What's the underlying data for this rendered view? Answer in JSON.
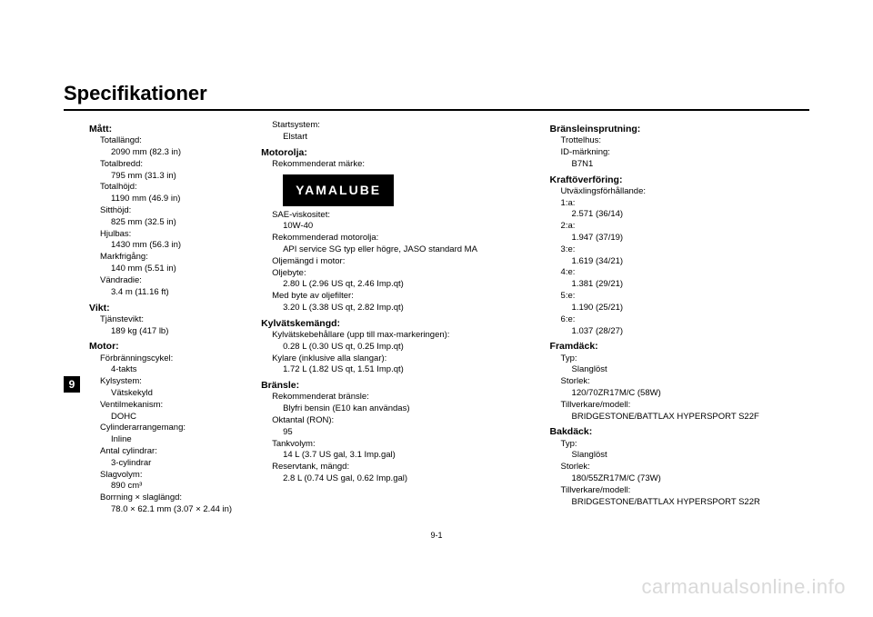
{
  "title": "Specifikationer",
  "section_num": "9",
  "page_num": "9-1",
  "watermark": "carmanualsonline.info",
  "yamalube": "YAMALUBE",
  "col1": {
    "matt": {
      "h": "Mått:",
      "items": [
        {
          "k": "Totallängd:",
          "v": "2090 mm (82.3 in)"
        },
        {
          "k": "Totalbredd:",
          "v": "795 mm (31.3 in)"
        },
        {
          "k": "Totalhöjd:",
          "v": "1190 mm (46.9 in)"
        },
        {
          "k": "Sitthöjd:",
          "v": "825 mm (32.5 in)"
        },
        {
          "k": "Hjulbas:",
          "v": "1430 mm (56.3 in)"
        },
        {
          "k": "Markfrigång:",
          "v": "140 mm (5.51 in)"
        },
        {
          "k": "Vändradie:",
          "v": "3.4 m (11.16 ft)"
        }
      ]
    },
    "vikt": {
      "h": "Vikt:",
      "items": [
        {
          "k": "Tjänstevikt:",
          "v": "189 kg (417 lb)"
        }
      ]
    },
    "motor": {
      "h": "Motor:",
      "items": [
        {
          "k": "Förbränningscykel:",
          "v": "4-takts"
        },
        {
          "k": "Kylsystem:",
          "v": "Vätskekyld"
        },
        {
          "k": "Ventilmekanism:",
          "v": "DOHC"
        },
        {
          "k": "Cylinderarrangemang:",
          "v": "Inline"
        },
        {
          "k": "Antal cylindrar:",
          "v": "3-cylindrar"
        },
        {
          "k": "Slagvolym:",
          "v": "890 cm³"
        },
        {
          "k": "Borrning × slaglängd:",
          "v": "78.0 × 62.1 mm (3.07 × 2.44 in)"
        }
      ]
    }
  },
  "col2": {
    "startsystem": {
      "k": "Startsystem:",
      "v": "Elstart"
    },
    "motorolja": {
      "h": "Motorolja:",
      "rek_marke": "Rekommenderat märke:",
      "items": [
        {
          "k": "SAE-viskositet:",
          "v": "10W-40"
        },
        {
          "k": "Rekommenderad motorolja:",
          "v": "API service SG typ eller högre, JASO standard MA"
        }
      ],
      "oljemangd": {
        "k": "Oljemängd i motor:",
        "sub": [
          {
            "k": "Oljebyte:",
            "v": "2.80 L (2.96 US qt, 2.46 Imp.qt)"
          },
          {
            "k": "Med byte av oljefilter:",
            "v": "3.20 L (3.38 US qt, 2.82 Imp.qt)"
          }
        ]
      }
    },
    "kylvatska": {
      "h": "Kylvätskemängd:",
      "items": [
        {
          "k": "Kylvätskebehållare (upp till max-markeringen):",
          "v": "0.28 L (0.30 US qt, 0.25 Imp.qt)"
        },
        {
          "k": "Kylare (inklusive alla slangar):",
          "v": "1.72 L (1.82 US qt, 1.51 Imp.qt)"
        }
      ]
    },
    "bransle": {
      "h": "Bränsle:",
      "items": [
        {
          "k": "Rekommenderat bränsle:",
          "v": "Blyfri bensin (E10 kan användas)"
        },
        {
          "k": "Oktantal (RON):",
          "v": "95"
        },
        {
          "k": "Tankvolym:",
          "v": "14 L (3.7 US gal, 3.1 Imp.gal)"
        },
        {
          "k": "Reservtank, mängd:",
          "v": "2.8 L (0.74 US gal, 0.62 Imp.gal)"
        }
      ]
    }
  },
  "col3": {
    "insprutning": {
      "h": "Bränsleinsprutning:",
      "trottel": {
        "k": "Trottelhus:",
        "sub": [
          {
            "k": "ID-märkning:",
            "v": "B7N1"
          }
        ]
      }
    },
    "kraft": {
      "h": "Kraftöverföring:",
      "utvaxling": {
        "k": "Utväxlingsförhållande:",
        "sub": [
          {
            "k": "1:a:",
            "v": "2.571 (36/14)"
          },
          {
            "k": "2:a:",
            "v": "1.947 (37/19)"
          },
          {
            "k": "3:e:",
            "v": "1.619 (34/21)"
          },
          {
            "k": "4:e:",
            "v": "1.381 (29/21)"
          },
          {
            "k": "5:e:",
            "v": "1.190 (25/21)"
          },
          {
            "k": "6:e:",
            "v": "1.037 (28/27)"
          }
        ]
      }
    },
    "framdack": {
      "h": "Framdäck:",
      "items": [
        {
          "k": "Typ:",
          "v": "Slanglöst"
        },
        {
          "k": "Storlek:",
          "v": "120/70ZR17M/C (58W)"
        },
        {
          "k": "Tillverkare/modell:",
          "v": "BRIDGESTONE/BATTLAX HYPERSPORT S22F"
        }
      ]
    },
    "bakdack": {
      "h": "Bakdäck:",
      "items": [
        {
          "k": "Typ:",
          "v": "Slanglöst"
        },
        {
          "k": "Storlek:",
          "v": "180/55ZR17M/C (73W)"
        },
        {
          "k": "Tillverkare/modell:",
          "v": "BRIDGESTONE/BATTLAX HYPERSPORT S22R"
        }
      ]
    }
  }
}
